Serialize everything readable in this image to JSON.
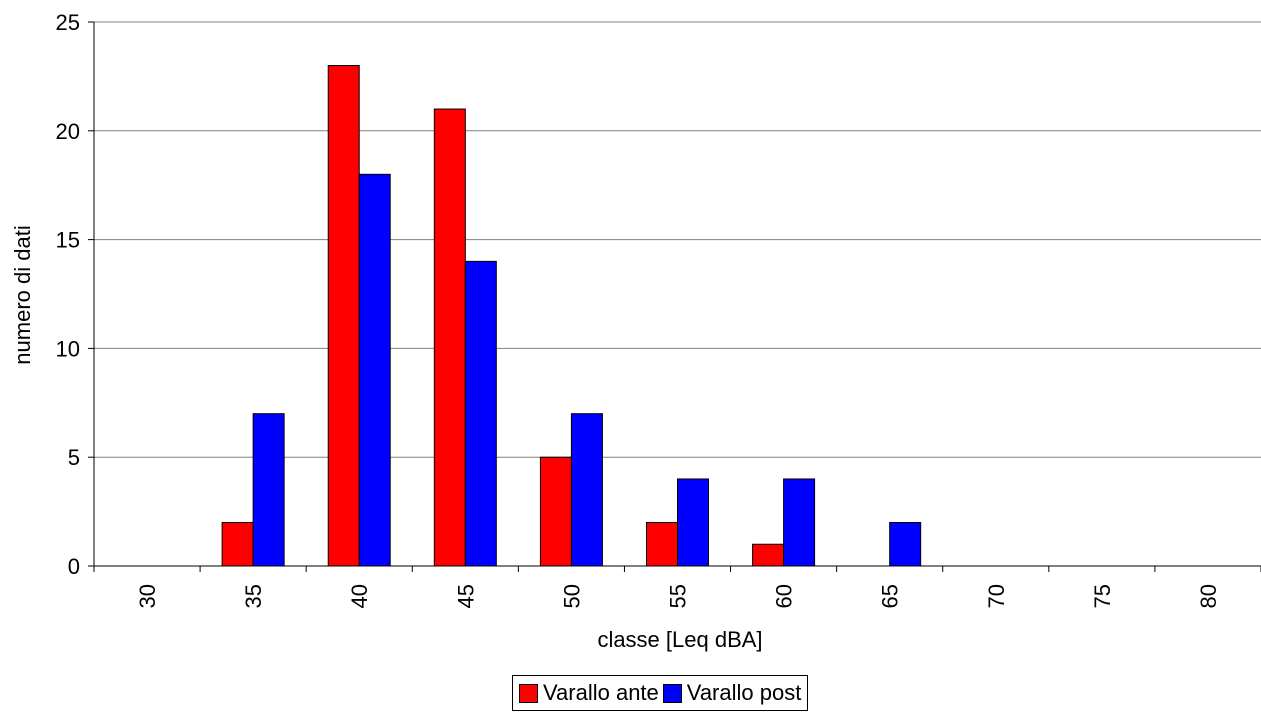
{
  "chart_data": {
    "type": "bar",
    "title": "",
    "xlabel": "classe [Leq dBA]",
    "ylabel": "numero di dati",
    "categories": [
      "30",
      "35",
      "40",
      "45",
      "50",
      "55",
      "60",
      "65",
      "70",
      "75",
      "80"
    ],
    "series": [
      {
        "name": "Varallo ante",
        "color": "#ff0000",
        "values": [
          0,
          2,
          23,
          21,
          5,
          2,
          1,
          0,
          0,
          0,
          0
        ]
      },
      {
        "name": "Varallo post",
        "color": "#0000ff",
        "values": [
          0,
          7,
          18,
          14,
          7,
          4,
          4,
          2,
          0,
          0,
          0
        ]
      }
    ],
    "ylim": [
      0,
      25
    ],
    "yticks": [
      "0",
      "5",
      "10",
      "15",
      "20",
      "25"
    ],
    "grid": true,
    "legend": "bottom"
  }
}
